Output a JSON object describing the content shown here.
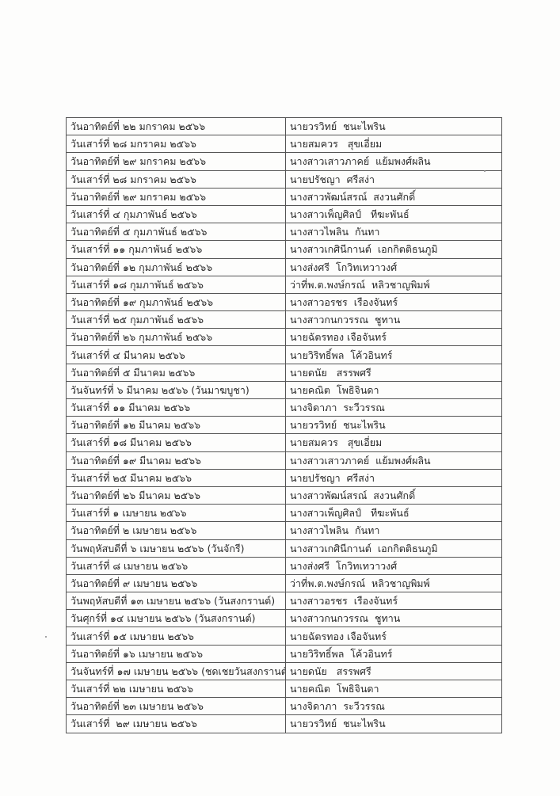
{
  "table": {
    "rows": [
      {
        "date": "วันอาทิตย์ที่ ๒๒ มกราคม ๒๕๖๖",
        "name": "นายวรวิทย์  ชนะไพริน"
      },
      {
        "date": "วันเสาร์ที่ ๒๘ มกราคม ๒๕๖๖",
        "name": "นายสมควร   สุขเอี่ยม"
      },
      {
        "date": "วันอาทิตย์ที่ ๒๙ มกราคม ๒๕๖๖",
        "name": "นางสาวเสาวภาคย์  แย้มพงศ์ผลิน"
      },
      {
        "date": "วันเสาร์ที่ ๒๘ มกราคม ๒๕๖๖",
        "name": "นายปรัชญา  ศรีสง่า"
      },
      {
        "date": "วันอาทิตย์ที่ ๒๙ มกราคม ๒๕๖๖",
        "name": "นางสาวพัฒน์สรณ์  สงวนศักดิ์"
      },
      {
        "date": "วันเสาร์ที่ ๔ กุมภาพันธ์ ๒๕๖๖",
        "name": "นางสาวเพ็ญศิลป์   ทีฆะพันธ์"
      },
      {
        "date": "วันอาทิตย์ที่ ๕ กุมภาพันธ์ ๒๕๖๖",
        "name": "นางสาวไพลิน  กันทา"
      },
      {
        "date": "วันเสาร์ที่ ๑๑ กุมภาพันธ์ ๒๕๖๖",
        "name": "นางสาวเกศินีกานต์  เอกกิตติธนภูมิ"
      },
      {
        "date": "วันอาทิตย์ที่ ๑๒ กุมภาพันธ์ ๒๕๖๖",
        "name": "นางส่งศรี  โกวิทเทวาวงศ์"
      },
      {
        "date": "วันเสาร์ที่ ๑๘ กุมภาพันธ์ ๒๕๖๖",
        "name": "ว่าที่พ.ต.พงษ์กรณ์  หลิวชาญพิมพ์"
      },
      {
        "date": "วันอาทิตย์ที่ ๑๙ กุมภาพันธ์ ๒๕๖๖",
        "name": "นางสาวอรชร  เรืองจันทร์"
      },
      {
        "date": "วันเสาร์ที่ ๒๕ กุมภาพันธ์ ๒๕๖๖",
        "name": "นางสาวกนกวรรณ  ชูทาน"
      },
      {
        "date": "วันอาทิตย์ที่ ๒๖ กุมภาพันธ์ ๒๕๖๖",
        "name": "นายฉัตรทอง เจือจันทร์"
      },
      {
        "date": "วันเสาร์ที่ ๔ มีนาคม ๒๕๖๖",
        "name": "นายวิริทธิ์พล  โค้วอินทร์"
      },
      {
        "date": "วันอาทิตย์ที่ ๕ มีนาคม ๒๕๖๖",
        "name": "นายดนัย   สรรพศรี"
      },
      {
        "date": "วันจันทร์ที่ ๖ มีนาคม ๒๕๖๖ (วันมาฆบูชา)",
        "name": "นายคณิต  โพธิจินดา"
      },
      {
        "date": "วันเสาร์ที่ ๑๑ มีนาคม ๒๕๖๖",
        "name": "นางจิดาภา  ระวีวรรณ"
      },
      {
        "date": "วันอาทิตย์ที่ ๑๒ มีนาคม ๒๕๖๖",
        "name": "นายวรวิทย์  ชนะไพริน"
      },
      {
        "date": "วันเสาร์ที่ ๑๘ มีนาคม ๒๕๖๖",
        "name": "นายสมควร   สุขเอี่ยม"
      },
      {
        "date": "วันอาทิตย์ที่ ๑๙ มีนาคม ๒๕๖๖",
        "name": "นางสาวเสาวภาคย์  แย้มพงศ์ผลิน"
      },
      {
        "date": "วันเสาร์ที่ ๒๕ มีนาคม ๒๕๖๖",
        "name": "นายปรัชญา  ศรีสง่า"
      },
      {
        "date": "วันอาทิตย์ที่ ๒๖ มีนาคม ๒๕๖๖",
        "name": "นางสาวพัฒน์สรณ์  สงวนศักดิ์"
      },
      {
        "date": "วันเสาร์ที่ ๑ เมษายน ๒๕๖๖",
        "name": "นางสาวเพ็ญศิลป์   ทีฆะพันธ์"
      },
      {
        "date": "วันอาทิตย์ที่ ๒ เมษายน ๒๕๖๖",
        "name": "นางสาวไพลิน  กันทา"
      },
      {
        "date": "วันพฤหัสบดีที่ ๖ เมษายน ๒๕๖๖ (วันจักรี)",
        "name": "นางสาวเกศินีกานต์  เอกกิตติธนภูมิ"
      },
      {
        "date": "วันเสาร์ที่ ๘ เมษายน ๒๕๖๖",
        "name": "นางส่งศรี  โกวิทเทวาวงศ์"
      },
      {
        "date": "วันอาทิตย์ที่ ๙ เมษายน ๒๕๖๖",
        "name": "ว่าที่พ.ต.พงษ์กรณ์  หลิวชาญพิมพ์"
      },
      {
        "date": "วันพฤหัสบดีที่ ๑๓ เมษายน ๒๕๖๖ (วันสงกรานต์)",
        "name": "นางสาวอรชร  เรืองจันทร์"
      },
      {
        "date": "วันศุกร์ที่ ๑๔ เมษายน ๒๕๖๖ (วันสงกรานต์)",
        "name": "นางสาวกนกวรรณ  ชูทาน"
      },
      {
        "date": "วันเสาร์ที่ ๑๕ เมษายน ๒๕๖๖",
        "name": "นายฉัตรทอง เจือจันทร์"
      },
      {
        "date": "วันอาทิตย์ที่ ๑๖ เมษายน ๒๕๖๖",
        "name": "นายวิริทธิ์พล  โค้วอินทร์"
      },
      {
        "date": "วันจันทร์ที่ ๑๗ เมษายน ๒๕๖๖ (ชดเชยวันสงกรานต์)",
        "name": "นายดนัย   สรรพศรี"
      },
      {
        "date": "วันเสาร์ที่ ๒๒ เมษายน ๒๕๖๖",
        "name": "นายคณิต  โพธิจินดา"
      },
      {
        "date": "วันอาทิตย์ที่ ๒๓ เมษายน ๒๕๖๖",
        "name": "นางจิดาภา  ระวีวรรณ"
      },
      {
        "date": "วันเสาร์ที่  ๒๙ เมษายน ๒๕๖๖",
        "name": "นายวรวิทย์  ชนะไพริน"
      }
    ]
  }
}
